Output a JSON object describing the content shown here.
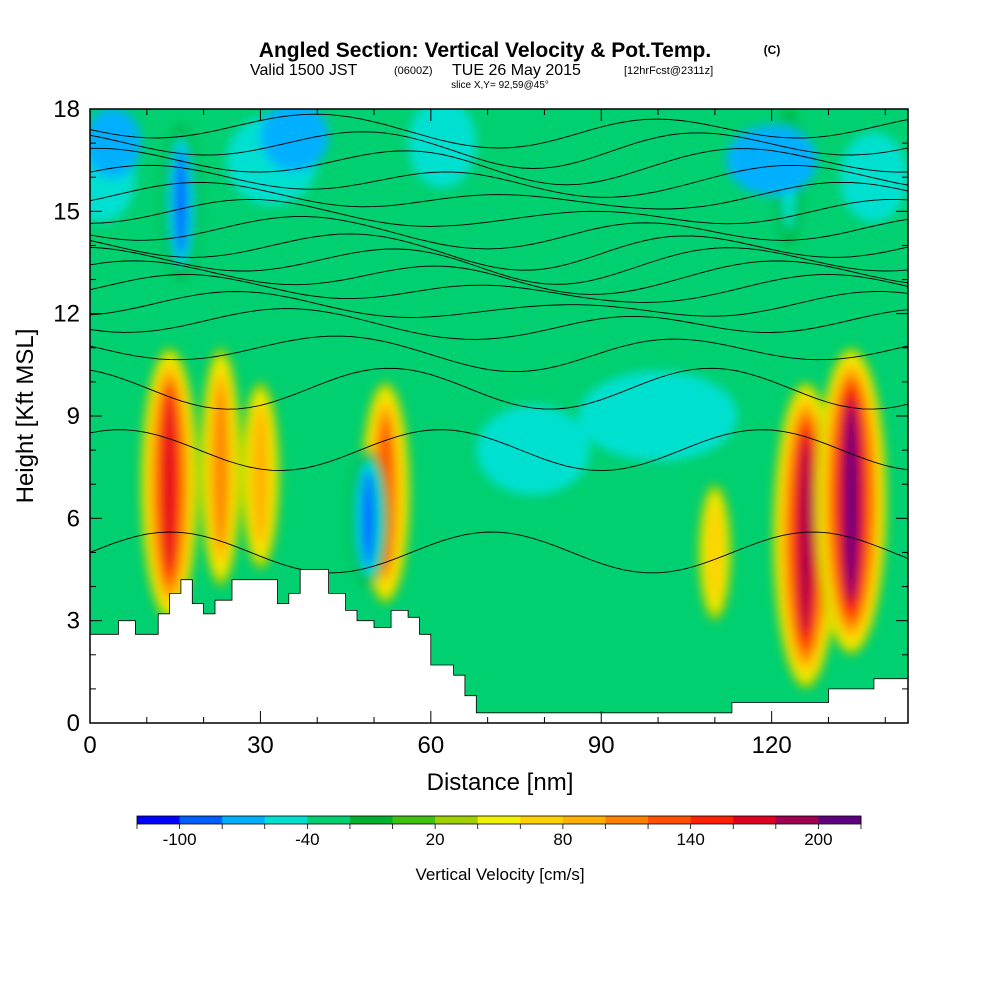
{
  "chart_data": {
    "type": "heatmap",
    "title": "Angled Section: Vertical Velocity & Pot.Temp.",
    "title_units": "(C)",
    "subtitle_valid": "Valid 1500 JST",
    "subtitle_utc": "(0600Z)",
    "subtitle_date": "TUE 26 May 2015",
    "subtitle_fcst": "[12hrFcst@2311z]",
    "slice_label": "slice X,Y= 92,59@45°",
    "xlabel": "Distance [nm]",
    "ylabel": "Height [Kft MSL]",
    "xlim": [
      0,
      144
    ],
    "ylim": [
      0,
      18
    ],
    "x_ticks": [
      0,
      30,
      60,
      90,
      120
    ],
    "x_tick_labels": [
      "0",
      "30",
      "60",
      "90",
      "120"
    ],
    "y_ticks": [
      0,
      3,
      6,
      9,
      12,
      15,
      18
    ],
    "y_tick_labels": [
      "0",
      "3",
      "6",
      "9",
      "12",
      "15",
      "18"
    ],
    "colorbar": {
      "label": "Vertical Velocity [cm/s]",
      "levels": [
        -120,
        -100,
        -80,
        -60,
        -40,
        -20,
        0,
        20,
        40,
        60,
        80,
        100,
        120,
        140,
        160,
        180,
        200,
        220
      ],
      "tick_values": [
        -100,
        -40,
        20,
        80,
        140,
        200
      ],
      "tick_labels": [
        "-100",
        "-40",
        "20",
        "80",
        "140",
        "200"
      ],
      "colors": [
        "#0000ff",
        "#0060ff",
        "#00b0ff",
        "#00e0d0",
        "#00d070",
        "#00b030",
        "#40c010",
        "#a0d000",
        "#f0f000",
        "#ffd000",
        "#ffb000",
        "#ff8000",
        "#ff5000",
        "#ff2000",
        "#e00020",
        "#a00050",
        "#600080"
      ]
    },
    "updrafts": [
      {
        "x": 14,
        "y_range": [
          3,
          11
        ],
        "peak_cm_s": 170
      },
      {
        "x": 23,
        "y_range": [
          4,
          11
        ],
        "peak_cm_s": 110
      },
      {
        "x": 30,
        "y_range": [
          4.5,
          10
        ],
        "peak_cm_s": 100
      },
      {
        "x": 52,
        "y_range": [
          3.5,
          10
        ],
        "peak_cm_s": 140
      },
      {
        "x": 110,
        "y_range": [
          3,
          7
        ],
        "peak_cm_s": 80
      },
      {
        "x": 126,
        "y_range": [
          1,
          10
        ],
        "peak_cm_s": 200
      },
      {
        "x": 134,
        "y_range": [
          2,
          11
        ],
        "peak_cm_s": 220
      }
    ],
    "downdrafts": [
      {
        "x": 16,
        "y_range": [
          13,
          17.5
        ],
        "min_cm_s": -100
      },
      {
        "x": 49,
        "y_range": [
          4,
          8
        ],
        "min_cm_s": -100
      },
      {
        "x": 123,
        "y_range": [
          14,
          18
        ],
        "min_cm_s": -60
      }
    ],
    "terrain_profile": {
      "x": [
        0,
        5,
        8,
        10,
        12,
        14,
        16,
        18,
        20,
        22,
        25,
        28,
        30,
        33,
        35,
        37,
        39,
        42,
        45,
        47,
        50,
        53,
        56,
        58,
        60,
        62,
        64,
        66,
        68,
        70,
        80,
        90,
        100,
        105,
        113,
        120,
        124,
        130,
        138,
        144
      ],
      "height_kft": [
        2.6,
        3.0,
        2.6,
        2.6,
        3.2,
        3.8,
        4.2,
        3.5,
        3.2,
        3.6,
        4.2,
        4.2,
        4.2,
        3.5,
        3.8,
        4.5,
        4.5,
        3.8,
        3.3,
        3.0,
        2.8,
        3.3,
        3.1,
        2.6,
        1.7,
        1.7,
        1.4,
        0.8,
        0.3,
        0.3,
        0.3,
        0.3,
        0.3,
        0.3,
        0.6,
        0.6,
        0.6,
        1.0,
        1.3,
        1.3
      ]
    }
  }
}
